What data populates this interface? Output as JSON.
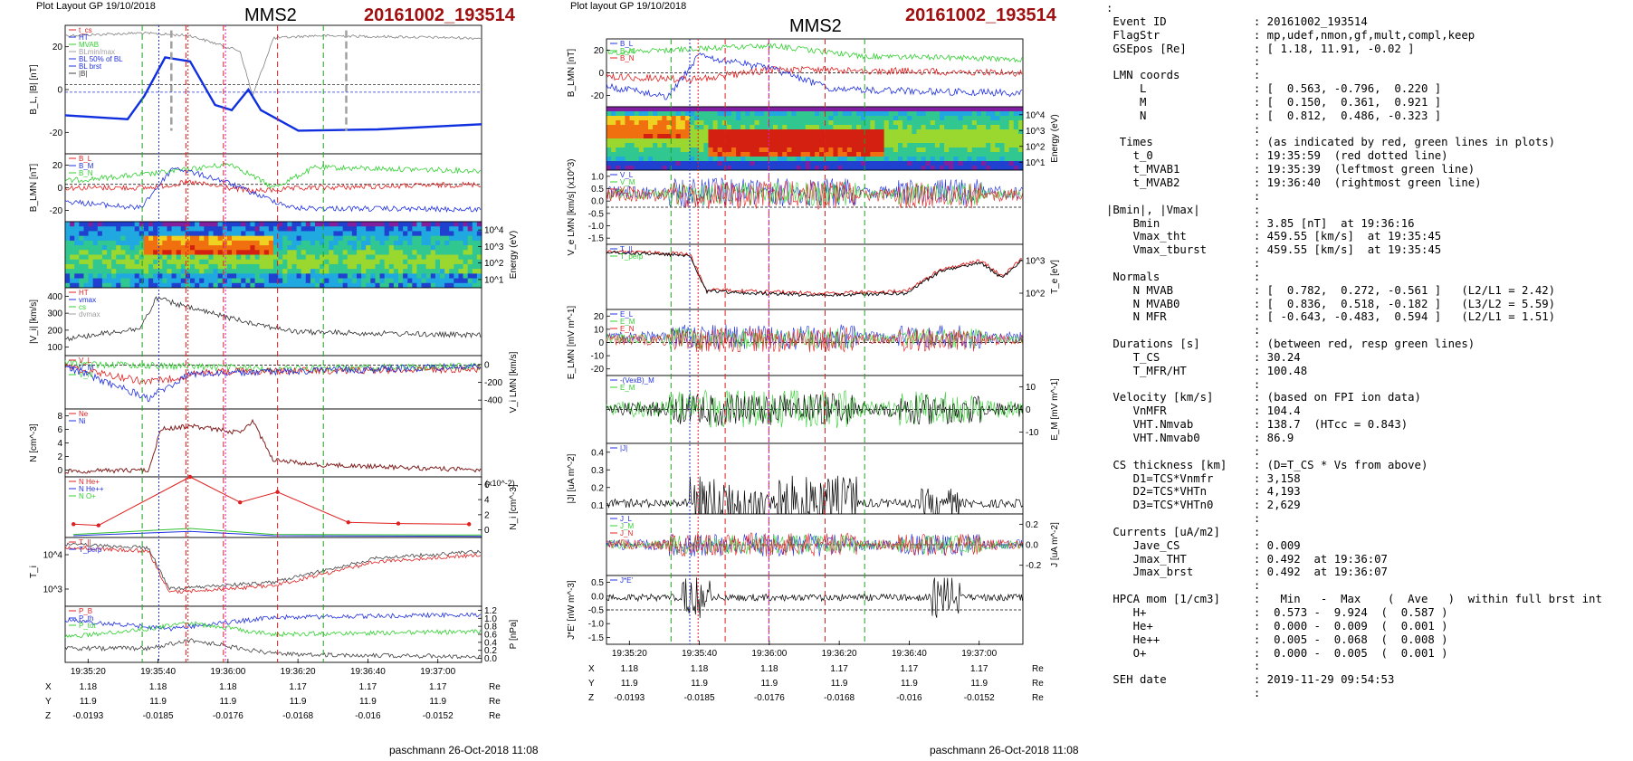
{
  "left_plot": {
    "header": "Plot Layout GP 19/10/2018",
    "spacecraft": "MMS2",
    "event": "20161002_193514",
    "footer": "paschmann 26-Oct-2018 11:08"
  },
  "right_plot": {
    "header": "Plot layout GP 19/10/2018",
    "spacecraft": "MMS2",
    "event": "20161002_193514",
    "footer": "paschmann 26-Oct-2018 11:08"
  },
  "time_ticks": [
    "19:35:20",
    "19:35:40",
    "19:36:00",
    "19:36:20",
    "19:36:40",
    "19:37:00"
  ],
  "position_table": {
    "rows": [
      {
        "label": "X",
        "values": [
          "1.18",
          "1.18",
          "1.18",
          "1.17",
          "1.17",
          "1.17"
        ],
        "unit": "Re"
      },
      {
        "label": "Y",
        "values": [
          "11.9",
          "11.9",
          "11.9",
          "11.9",
          "11.9",
          "11.9"
        ],
        "unit": "Re"
      },
      {
        "label": "Z",
        "values": [
          "-0.0193",
          "-0.0185",
          "-0.0176",
          "-0.0168",
          "-0.016",
          "-0.0152"
        ],
        "unit": "Re"
      }
    ]
  },
  "chart_data": [
    {
      "type": "line",
      "panels": [
        {
          "id": "B_L_absB",
          "ylabel": "B_L, |B| [nT]",
          "yticks": [
            "20",
            "0",
            "-20"
          ],
          "legend": [
            "t_cs",
            "HT",
            "MVAB",
            "BLmin/max",
            "BL 50% of BL",
            "BL brst",
            "|B|"
          ]
        },
        {
          "id": "B_LMN",
          "ylabel": "B_LMN [nT]",
          "yticks": [
            "20",
            "0",
            "-20"
          ],
          "legend": [
            "B_L",
            "B_M",
            "B_N"
          ]
        },
        {
          "id": "ion_spectrogram",
          "type": "heatmap",
          "ylabel": "Energy (eV)",
          "yticks": [
            "10^4",
            "10^3",
            "10^2",
            "10^1"
          ]
        },
        {
          "id": "Vi_abs",
          "ylabel": "|V_i| [km/s]",
          "yticks": [
            "400",
            "300",
            "200",
            "100"
          ],
          "legend": [
            "HT",
            "vmax",
            "cs",
            "dvmax"
          ]
        },
        {
          "id": "Vi_LMN",
          "ylabel": "V_i LMN [km/s]",
          "yticks": [
            "0",
            "-200",
            "-400"
          ],
          "legend": [
            "V_L",
            "V_M",
            "V_N"
          ]
        },
        {
          "id": "density",
          "ylabel": "N [cm^-3]",
          "yticks": [
            "8",
            "6",
            "4",
            "2",
            "0"
          ],
          "legend": [
            "Ne",
            "Ni"
          ]
        },
        {
          "id": "hpca",
          "ylabel": "N_i [cm^-3]",
          "yticks": [
            "6",
            "4",
            "2",
            "0"
          ],
          "multiplier": "(x10^-2)",
          "legend": [
            "N He+",
            "N He++",
            "N O+"
          ]
        },
        {
          "id": "Ti",
          "ylabel": "T_i",
          "yticks": [
            "10^4",
            "10^3"
          ],
          "legend": [
            "T_||",
            "T_perp"
          ]
        },
        {
          "id": "pressure",
          "ylabel": "P [nPa]",
          "yticks": [
            "1.2",
            "1.0",
            "0.8",
            "0.6",
            "0.4",
            "0.2",
            "0.0"
          ],
          "legend": [
            "P_B",
            "P_th",
            "P_tot"
          ]
        }
      ]
    },
    {
      "type": "line",
      "panels": [
        {
          "id": "B_LMN",
          "ylabel": "B_LMN [nT]",
          "yticks": [
            "20",
            "0",
            "-20"
          ],
          "legend": [
            "B_L",
            "B_M",
            "B_N"
          ]
        },
        {
          "id": "electron_spectrogram",
          "type": "heatmap",
          "ylabel": "Energy (eV)",
          "yticks": [
            "10^4",
            "10^3",
            "10^2",
            "10^1"
          ]
        },
        {
          "id": "Ve_LMN",
          "ylabel": "V_e LMN [km/s] (x10^3)",
          "yticks": [
            "1.0",
            "0.5",
            "0.0",
            "-0.5",
            "-1.0",
            "-1.5"
          ],
          "legend": [
            "V_L",
            "V_M",
            "V_N"
          ]
        },
        {
          "id": "Te",
          "ylabel": "T_e [eV]",
          "yticks": [
            "10^3",
            "10^2"
          ],
          "legend": [
            "T_||",
            "T_perp"
          ]
        },
        {
          "id": "E_LMN",
          "ylabel": "E_LMN [mV m^-1]",
          "yticks": [
            "20",
            "10",
            "0",
            "-10",
            "-20"
          ],
          "legend": [
            "E_L",
            "E_M",
            "E_N"
          ]
        },
        {
          "id": "EM",
          "ylabel": "E_M [mV m^-1]",
          "yticks": [
            "10",
            "0",
            "-10"
          ],
          "legend": [
            "-(VexB)_M",
            "E_M"
          ]
        },
        {
          "id": "J_abs",
          "ylabel": "|J| [uA m^-2]",
          "yticks": [
            "0.4",
            "0.3",
            "0.2",
            "0.1"
          ],
          "legend": [
            "|J|"
          ]
        },
        {
          "id": "J_LMN",
          "ylabel": "J [uA m^-2]",
          "yticks": [
            "0.2",
            "0.0",
            "-0.2"
          ],
          "legend": [
            "J_L",
            "J_M",
            "J_N"
          ]
        },
        {
          "id": "JE",
          "ylabel": "J*E' [nW m^-3]",
          "yticks": [
            "0.5",
            "0.0",
            "-0.5",
            "-1.0",
            "-1.5"
          ],
          "legend": [
            "J*E'"
          ]
        }
      ]
    }
  ],
  "info_text": [
    ":",
    " Event ID             : 20161002_193514",
    " FlagStr              : mp,udef,nmon,gf,mult,compl,keep",
    " GSEpos [Re]          : [ 1.18, 11.91, -0.02 ]",
    "                      :",
    " LMN coords           :",
    "     L                : [  0.563, -0.796,  0.220 ]",
    "     M                : [  0.150,  0.361,  0.921 ]",
    "     N                : [  0.812,  0.486, -0.323 ]",
    "                      :",
    "  Times               : (as indicated by red, green lines in plots)",
    "    t_0               : 19:35:59  (red dotted line)",
    "    t_MVAB1           : 19:35:39  (leftmost green line)",
    "    t_MVAB2           : 19:36:40  (rightmost green line)",
    "                      :",
    "|Bmin|, |Vmax|        :",
    "    Bmin              : 3.85 [nT]  at 19:36:16",
    "    Vmax_tht          : 459.55 [km/s]  at 19:35:45",
    "    Vmax_tburst       : 459.55 [km/s]  at 19:35:45",
    "                      :",
    " Normals              :",
    "    N MVAB            : [  0.782,  0.272, -0.561 ]   (L2/L1 = 2.42)",
    "    N MVAB0           : [  0.836,  0.518, -0.182 ]   (L3/L2 = 5.59)",
    "    N MFR             : [ -0.643, -0.483,  0.594 ]   (L2/L1 = 1.51)",
    "                      :",
    " Durations [s]        : (between red, resp green lines)",
    "    T_CS              : 30.24",
    "    T_MFR/HT          : 100.48",
    "                      :",
    " Velocity [km/s]      : (based on FPI ion data)",
    "    VnMFR             : 104.4",
    "    VHT.Nmvab         : 138.7  (HTcc = 0.843)",
    "    VHT.Nmvab0        : 86.9",
    "                      :",
    " CS thickness [km]    : (D=T_CS * Vs from above)",
    "    D1=TCS*Vnmfr      : 3,158",
    "    D2=TCS*VHTn       : 4,193",
    "    D3=TCS*VHTn0      : 2,629",
    "                      :",
    " Currents [uA/m2]     :",
    "    Jave_CS           : 0.009",
    "    Jmax_THT          : 0.492  at 19:36:07",
    "    Jmax_brst         : 0.492  at 19:36:07",
    "                      :",
    " HPCA mom [1/cm3]     :   Min   -  Max    (  Ave   )  within full brst int",
    "    H+                :  0.573 -  9.924  (  0.587 )",
    "    He+               :  0.000 -  0.009  (  0.001 )",
    "    He++              :  0.005 -  0.068  (  0.008 )",
    "    O+                :  0.000 -  0.005  (  0.001 )",
    "                      :",
    " SEH date             : 2019-11-29 09:54:53",
    "                      :"
  ]
}
